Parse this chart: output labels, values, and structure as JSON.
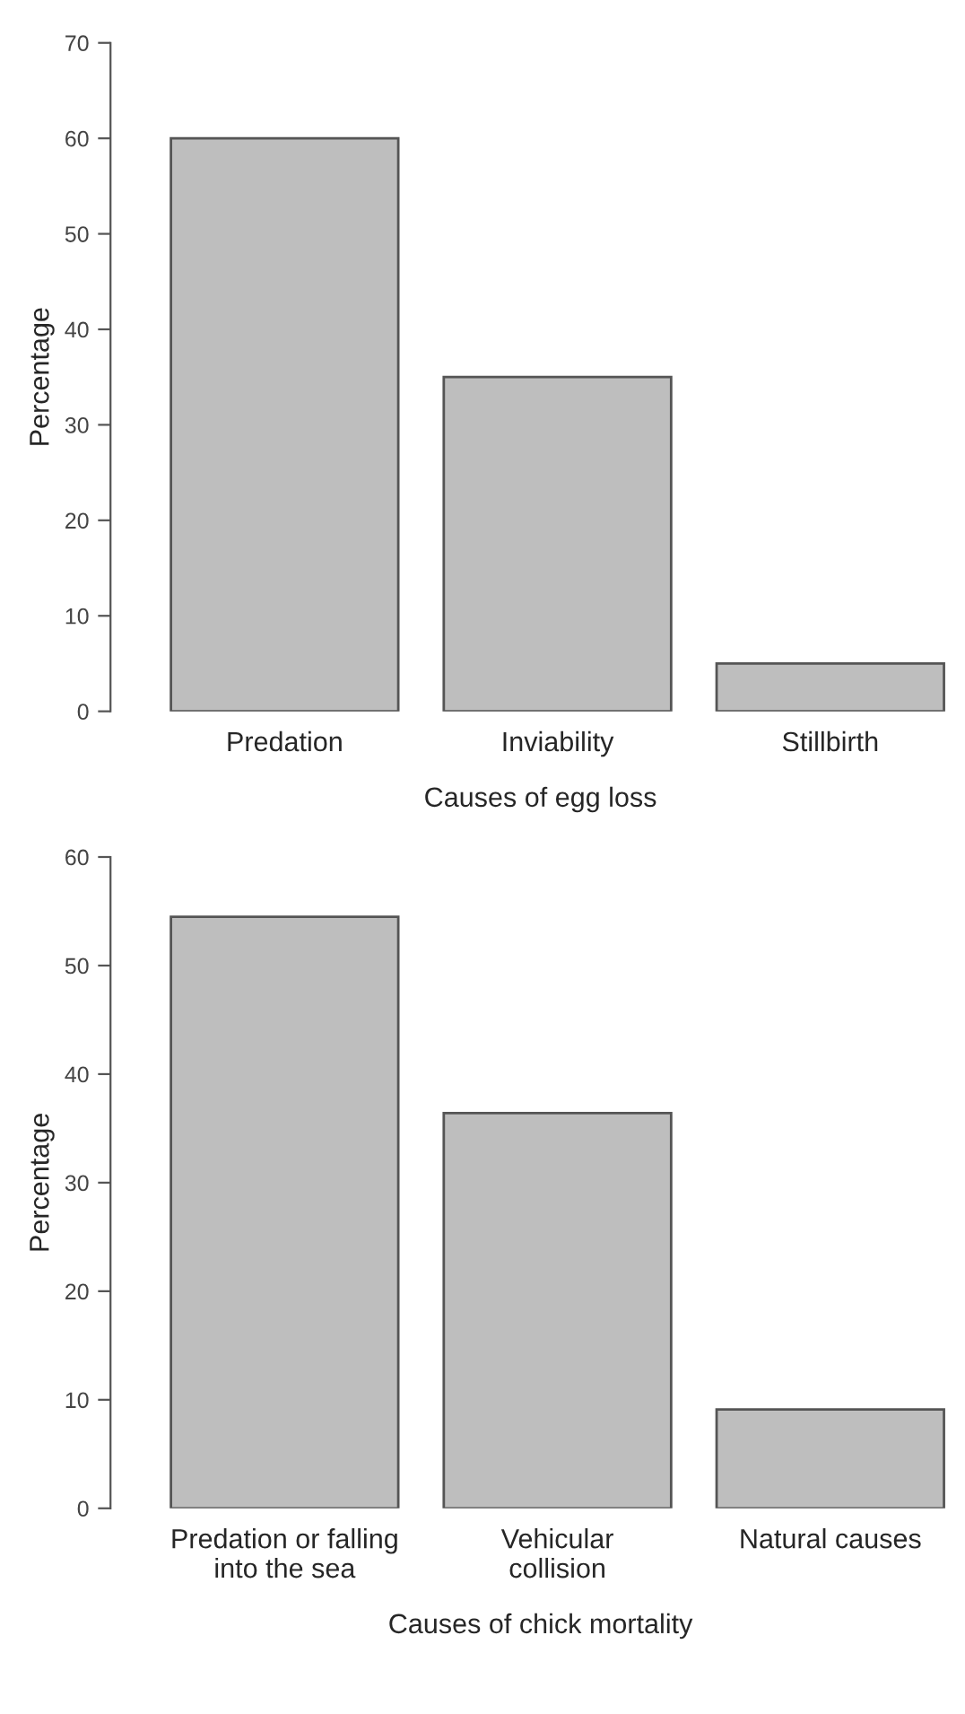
{
  "chart_data": [
    {
      "type": "bar",
      "categories": [
        "Predation",
        "Inviability",
        "Stillbirth"
      ],
      "values": [
        60,
        35,
        5
      ],
      "color": "#bebebe",
      "xlabel": "Causes of egg loss",
      "ylabel": "Percentage",
      "ylim": [
        0,
        70
      ],
      "yticks": [
        0,
        10,
        20,
        30,
        40,
        50,
        60,
        70
      ]
    },
    {
      "type": "bar",
      "categories": [
        "Predation or falling\ninto the sea",
        "Vehicular\ncollision",
        "Natural causes"
      ],
      "values": [
        54.5,
        36.4,
        9.1
      ],
      "color": "#bebebe",
      "xlabel": "Causes of chick mortality",
      "ylabel": "Percentage",
      "ylim": [
        0,
        60
      ],
      "yticks": [
        0,
        10,
        20,
        30,
        40,
        50,
        60
      ]
    }
  ]
}
